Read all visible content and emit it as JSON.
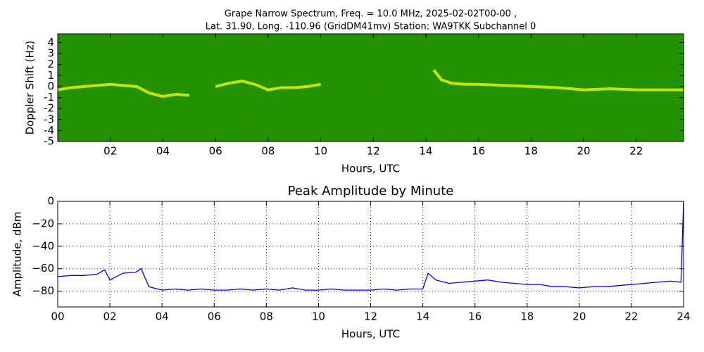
{
  "chart_data": [
    {
      "type": "spectrogram",
      "title": "Grape Narrow Spectrum, Freq. = 10.0 MHz, 2025-02-02T00-00 ,",
      "subtitle": "Lat.  31.90, Long. -110.96 (GridDM41mv) Station: WA9TKK Subchannel 0",
      "x_label": "Hours, UTC",
      "y_label": "Doppler Shift (Hz)",
      "x": [
        0,
        0.5,
        1,
        1.5,
        2,
        2.5,
        3,
        3.5,
        4,
        4.5,
        5,
        5.5,
        6,
        6.5,
        7,
        7.5,
        8,
        8.5,
        9,
        9.5,
        10,
        11,
        12,
        13,
        14,
        14.3,
        14.6,
        15,
        15.5,
        16,
        17,
        18,
        19,
        20,
        21,
        22,
        23,
        23.8
      ],
      "values": [
        -0.3,
        -0.1,
        0,
        0.1,
        0.2,
        0.1,
        0,
        -0.6,
        -0.9,
        -0.7,
        -0.8,
        null,
        0,
        0.3,
        0.5,
        0.2,
        -0.3,
        -0.1,
        -0.1,
        0,
        0.2,
        null,
        null,
        null,
        null,
        1.5,
        0.6,
        0.3,
        0.2,
        0.2,
        0.1,
        0,
        -0.1,
        -0.3,
        -0.2,
        -0.3,
        -0.3,
        -0.3
      ],
      "color": "#ffff00",
      "xlim": [
        0,
        23.8
      ],
      "ylim": [
        -5,
        4.8
      ],
      "xticks": [
        {
          "value": 2,
          "label": "02"
        },
        {
          "value": 4,
          "label": "04"
        },
        {
          "value": 6,
          "label": "06"
        },
        {
          "value": 8,
          "label": "08"
        },
        {
          "value": 10,
          "label": "10"
        },
        {
          "value": 12,
          "label": "12"
        },
        {
          "value": 14,
          "label": "14"
        },
        {
          "value": 16,
          "label": "16"
        },
        {
          "value": 18,
          "label": "18"
        },
        {
          "value": 20,
          "label": "20"
        },
        {
          "value": 22,
          "label": "22"
        }
      ],
      "yticks": [
        -5,
        -4,
        -3,
        -2,
        -1,
        0,
        1,
        2,
        3,
        4
      ],
      "grid": false
    },
    {
      "type": "line",
      "title": "Peak Amplitude by Minute",
      "x_label": "Hours, UTC",
      "y_label": "Amplitude, dBm",
      "x": [
        0,
        0.5,
        1,
        1.5,
        1.8,
        2,
        2.5,
        3,
        3.2,
        3.5,
        4,
        4.5,
        5,
        5.5,
        6,
        6.5,
        7,
        7.5,
        8,
        8.5,
        9,
        9.5,
        10,
        10.5,
        11,
        11.5,
        12,
        12.5,
        13,
        13.5,
        14,
        14.2,
        14.5,
        15,
        15.5,
        16,
        16.5,
        17,
        17.5,
        18,
        18.5,
        19,
        19.5,
        20,
        20.5,
        21,
        21.5,
        22,
        22.5,
        23,
        23.5,
        23.9,
        24
      ],
      "values": [
        -67,
        -66,
        -66,
        -65,
        -61,
        -70,
        -64,
        -63,
        -60,
        -76,
        -79,
        -78,
        -79,
        -78,
        -79,
        -79,
        -78,
        -79,
        -78,
        -79,
        -77,
        -79,
        -79,
        -78,
        -79,
        -79,
        -79,
        -78,
        -79,
        -78,
        -78,
        -64,
        -70,
        -73,
        -72,
        -71,
        -70,
        -72,
        -73,
        -74,
        -74,
        -76,
        -76,
        -77,
        -76,
        -76,
        -75,
        -74,
        -73,
        -72,
        -71,
        -72,
        0
      ],
      "color": "#0000ff",
      "xlim": [
        0,
        24
      ],
      "ylim": [
        -94,
        0
      ],
      "xticks": [
        {
          "value": 0,
          "label": "00"
        },
        {
          "value": 2,
          "label": "02"
        },
        {
          "value": 4,
          "label": "04"
        },
        {
          "value": 6,
          "label": "06"
        },
        {
          "value": 8,
          "label": "08"
        },
        {
          "value": 10,
          "label": "10"
        },
        {
          "value": 12,
          "label": "12"
        },
        {
          "value": 14,
          "label": "14"
        },
        {
          "value": 16,
          "label": "16"
        },
        {
          "value": 18,
          "label": "18"
        },
        {
          "value": 20,
          "label": "20"
        },
        {
          "value": 22,
          "label": "22"
        },
        {
          "value": 24,
          "label": "24"
        }
      ],
      "yticks": [
        0,
        {
          "value": -20,
          "label": "−20"
        },
        {
          "value": -40,
          "label": "−40"
        },
        {
          "value": -60,
          "label": "−60"
        },
        {
          "value": -80,
          "label": "−80"
        }
      ],
      "grid": true
    }
  ]
}
